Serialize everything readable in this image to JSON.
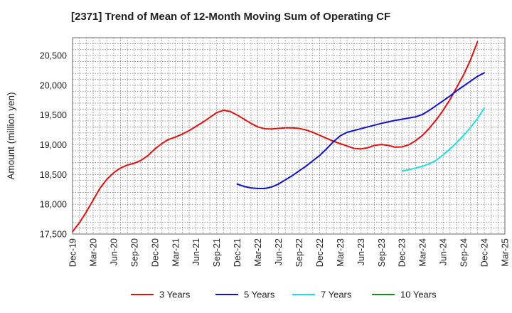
{
  "chart_data": {
    "type": "line",
    "title": "[2371]  Trend of Mean of 12-Month Moving Sum of Operating CF",
    "xlabel": "",
    "ylabel": "Amount (million yen)",
    "ylim": [
      17500,
      20800
    ],
    "yticks": [
      17500,
      18000,
      18500,
      19000,
      19500,
      20000,
      20500
    ],
    "ytick_labels": [
      "17,500",
      "18,000",
      "18,500",
      "19,000",
      "19,500",
      "20,000",
      "20,500"
    ],
    "xticks": [
      "Dec-19",
      "Mar-20",
      "Jun-20",
      "Sep-20",
      "Dec-20",
      "Mar-21",
      "Jun-21",
      "Sep-21",
      "Dec-21",
      "Mar-22",
      "Jun-22",
      "Sep-22",
      "Dec-22",
      "Mar-23",
      "Jun-23",
      "Sep-23",
      "Dec-23",
      "Mar-24",
      "Jun-24",
      "Sep-24",
      "Dec-24",
      "Mar-25"
    ],
    "x_unit": "months since Dec-19",
    "grid": true,
    "legend_position": "bottom",
    "series": [
      {
        "name": "3 Years",
        "color": "#dd1111",
        "x": [
          0,
          1,
          2,
          3,
          4,
          5,
          6,
          7,
          8,
          9,
          10,
          11,
          12,
          13,
          14,
          15,
          16,
          17,
          18,
          19,
          20,
          21,
          22,
          23,
          24,
          25,
          26,
          27,
          28,
          29,
          30,
          31,
          32,
          33,
          34,
          35,
          36,
          37,
          38,
          39,
          40,
          41,
          42,
          43,
          44,
          45,
          46,
          47,
          48,
          49,
          50,
          51,
          52,
          53,
          54,
          55,
          56,
          57,
          58,
          59,
          60
        ],
        "values": [
          17540,
          17690,
          17870,
          18070,
          18270,
          18420,
          18530,
          18610,
          18660,
          18690,
          18740,
          18820,
          18930,
          19020,
          19090,
          19130,
          19180,
          19240,
          19310,
          19380,
          19460,
          19540,
          19580,
          19560,
          19500,
          19430,
          19360,
          19300,
          19270,
          19265,
          19275,
          19285,
          19285,
          19275,
          19250,
          19210,
          19160,
          19110,
          19060,
          19020,
          18980,
          18940,
          18930,
          18950,
          18990,
          19005,
          18990,
          18960,
          18965,
          19000,
          19070,
          19160,
          19280,
          19420,
          19580,
          19760,
          19970,
          20180,
          20430,
          20730,
          null
        ]
      },
      {
        "name": "5 Years",
        "color": "#1111cc",
        "x": [
          24,
          25,
          26,
          27,
          28,
          29,
          30,
          31,
          32,
          33,
          34,
          35,
          36,
          37,
          38,
          39,
          40,
          41,
          42,
          43,
          44,
          45,
          46,
          47,
          48,
          49,
          50,
          51,
          52,
          53,
          54,
          55,
          56,
          57,
          58,
          59,
          60
        ],
        "values": [
          18340,
          18300,
          18275,
          18265,
          18265,
          18290,
          18340,
          18410,
          18480,
          18560,
          18640,
          18730,
          18820,
          18930,
          19050,
          19150,
          19210,
          19240,
          19270,
          19300,
          19330,
          19360,
          19385,
          19410,
          19430,
          19450,
          19470,
          19510,
          19580,
          19660,
          19740,
          19820,
          19910,
          19990,
          20070,
          20150,
          20210
        ]
      },
      {
        "name": "7 Years",
        "color": "#22dddd",
        "x": [
          48,
          49,
          50,
          51,
          52,
          53,
          54,
          55,
          56,
          57,
          58,
          59,
          60
        ],
        "values": [
          18560,
          18580,
          18610,
          18640,
          18680,
          18740,
          18830,
          18930,
          19040,
          19160,
          19290,
          19440,
          19620
        ]
      },
      {
        "name": "10 Years",
        "color": "#228822",
        "x": [],
        "values": []
      }
    ]
  }
}
